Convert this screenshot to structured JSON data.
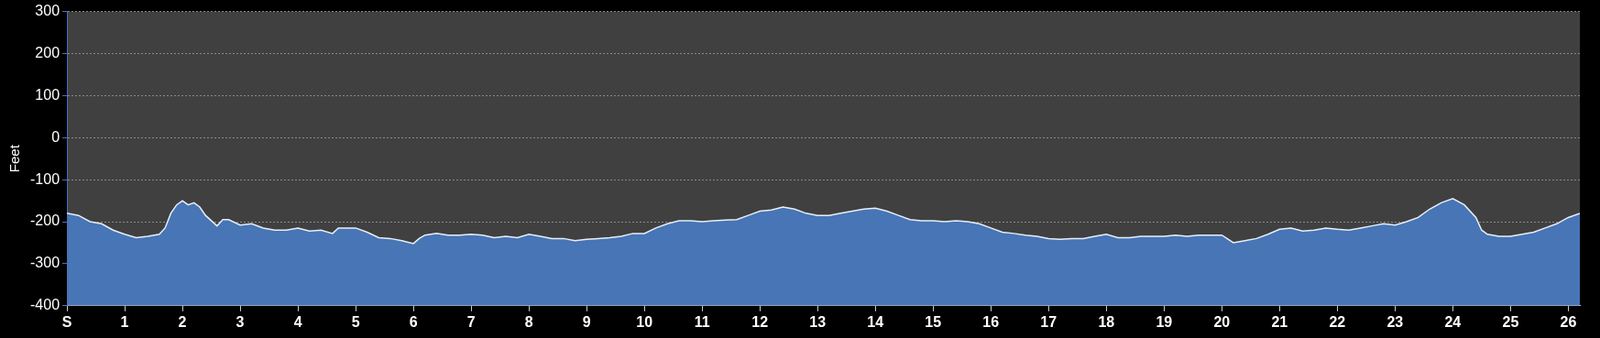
{
  "chart_data": {
    "type": "area",
    "y_label": "Feet",
    "x": [
      0,
      0.2,
      0.4,
      0.6,
      0.8,
      1.0,
      1.2,
      1.4,
      1.6,
      1.7,
      1.8,
      1.9,
      2.0,
      2.1,
      2.2,
      2.3,
      2.4,
      2.6,
      2.7,
      2.8,
      3.0,
      3.2,
      3.4,
      3.6,
      3.8,
      4.0,
      4.2,
      4.4,
      4.6,
      4.7,
      5.0,
      5.2,
      5.4,
      5.6,
      5.8,
      6.0,
      6.1,
      6.2,
      6.4,
      6.6,
      6.8,
      7.0,
      7.2,
      7.4,
      7.6,
      7.8,
      8.0,
      8.2,
      8.4,
      8.6,
      8.8,
      9.0,
      9.2,
      9.4,
      9.6,
      9.8,
      10.0,
      10.2,
      10.4,
      10.6,
      10.8,
      11.0,
      11.2,
      11.4,
      11.6,
      11.8,
      12.0,
      12.2,
      12.4,
      12.6,
      12.8,
      13.0,
      13.2,
      13.4,
      13.6,
      13.8,
      14.0,
      14.2,
      14.4,
      14.6,
      14.8,
      15.0,
      15.2,
      15.4,
      15.6,
      15.8,
      16.0,
      16.2,
      16.4,
      16.6,
      16.8,
      17.0,
      17.2,
      17.4,
      17.6,
      17.8,
      18.0,
      18.2,
      18.4,
      18.6,
      18.8,
      19.0,
      19.2,
      19.4,
      19.6,
      19.8,
      20.0,
      20.2,
      20.4,
      20.6,
      20.8,
      21.0,
      21.2,
      21.4,
      21.6,
      21.8,
      22.0,
      22.2,
      22.4,
      22.6,
      22.8,
      23.0,
      23.2,
      23.4,
      23.6,
      23.8,
      24.0,
      24.2,
      24.4,
      24.5,
      24.6,
      24.8,
      25.0,
      25.2,
      25.4,
      25.6,
      25.8,
      26.0,
      26.2
    ],
    "values": [
      -180,
      -185,
      -200,
      -205,
      -220,
      -230,
      -238,
      -235,
      -230,
      -215,
      -180,
      -160,
      -150,
      -160,
      -155,
      -165,
      -185,
      -210,
      -195,
      -195,
      -208,
      -205,
      -215,
      -220,
      -220,
      -215,
      -222,
      -220,
      -228,
      -215,
      -215,
      -225,
      -238,
      -240,
      -245,
      -252,
      -240,
      -232,
      -228,
      -232,
      -232,
      -230,
      -232,
      -238,
      -235,
      -238,
      -230,
      -235,
      -240,
      -240,
      -245,
      -242,
      -240,
      -238,
      -235,
      -228,
      -228,
      -215,
      -205,
      -198,
      -198,
      -200,
      -198,
      -196,
      -195,
      -185,
      -175,
      -172,
      -165,
      -170,
      -180,
      -185,
      -185,
      -180,
      -175,
      -170,
      -168,
      -175,
      -185,
      -195,
      -198,
      -198,
      -200,
      -198,
      -200,
      -205,
      -215,
      -225,
      -228,
      -232,
      -235,
      -240,
      -242,
      -240,
      -240,
      -235,
      -230,
      -238,
      -238,
      -235,
      -235,
      -235,
      -232,
      -235,
      -232,
      -232,
      -232,
      -250,
      -245,
      -240,
      -230,
      -218,
      -215,
      -222,
      -220,
      -215,
      -218,
      -220,
      -215,
      -210,
      -205,
      -208,
      -200,
      -190,
      -170,
      -155,
      -145,
      -160,
      -190,
      -220,
      -230,
      -235,
      -235,
      -230,
      -225,
      -215,
      -205,
      -190,
      -180
    ],
    "color": "#4775b5",
    "xlim": [
      0,
      26.2
    ],
    "xticks": [
      {
        "value": 0,
        "label": "S"
      },
      1,
      2,
      3,
      4,
      5,
      6,
      7,
      8,
      9,
      10,
      11,
      12,
      13,
      14,
      15,
      16,
      17,
      18,
      19,
      20,
      21,
      22,
      23,
      24,
      25,
      26
    ],
    "ylim": [
      -400,
      300
    ],
    "yticks": [
      -400,
      -300,
      -200,
      -100,
      0,
      100,
      200,
      300
    ],
    "grid": true
  }
}
